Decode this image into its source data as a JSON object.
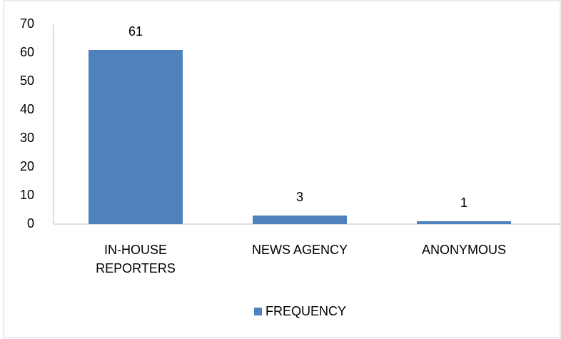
{
  "chart_data": {
    "type": "bar",
    "categories": [
      "IN-HOUSE REPORTERS",
      "NEWS AGENCY",
      "ANONYMOUS"
    ],
    "series": [
      {
        "name": "FREQUENCY",
        "color": "#4f81bd",
        "values": [
          61,
          3,
          1
        ]
      }
    ],
    "ylim": [
      0,
      70
    ],
    "yticks": [
      0,
      10,
      20,
      30,
      40,
      50,
      60,
      70
    ],
    "grid": false,
    "legend": "bottom"
  }
}
